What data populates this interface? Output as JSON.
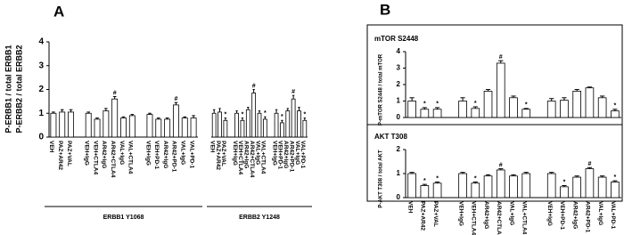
{
  "panel_labels": {
    "a": "A",
    "b": "B"
  },
  "chart_data": [
    {
      "type": "bar",
      "ylabel": [
        "P-ERBB1 / total ERBB1",
        "P-ERBB2 / total ERBB2"
      ],
      "xlabel": "ERBB1 Y1068",
      "categories": [
        "VEH",
        "PAZ+AR42",
        "PAZ+VAL",
        "VEH+IgG",
        "VEH+CTLA4",
        "AR42+IgG",
        "AR42+CTLA4",
        "VAL+IgG",
        "VAL+CTLA4",
        "VEH+IgG",
        "VEH+PD-1",
        "AR42+IgG",
        "AR42+PD-1",
        "VAL+IgG",
        "VAL+PD-1"
      ],
      "values": [
        1.0,
        1.05,
        1.05,
        1.0,
        0.75,
        1.1,
        1.6,
        0.8,
        0.9,
        0.95,
        0.75,
        0.75,
        1.35,
        0.8,
        0.8
      ],
      "errors": [
        0.05,
        0.1,
        0.1,
        0.05,
        0.05,
        0.1,
        0.1,
        0.05,
        0.05,
        0.05,
        0.05,
        0.05,
        0.1,
        0.05,
        0.1
      ],
      "annotations": [
        null,
        null,
        null,
        null,
        null,
        null,
        "#",
        null,
        null,
        null,
        null,
        null,
        "#",
        null,
        null
      ],
      "color": "#ffffff",
      "ylim": [
        0,
        4
      ],
      "yticks": [
        0,
        1,
        2,
        3,
        4
      ]
    },
    {
      "type": "bar",
      "xlabel": "ERBB2 Y1248",
      "categories": [
        "VEH",
        "PAZ+AR42",
        "PAZ+VAL",
        "VEH+IgG",
        "VEH+CTLA4",
        "AR42+IgG",
        "AR42+CTLA4",
        "VAL+IgG",
        "VAL+CTLA4",
        "VEH+IgG",
        "VEH+PD-1",
        "AR42+IgG",
        "AR42+PD-1",
        "VAL+IgG",
        "VAL+PD-1"
      ],
      "values": [
        1.0,
        1.05,
        0.7,
        1.0,
        0.7,
        1.15,
        1.85,
        1.0,
        0.75,
        1.0,
        0.6,
        1.1,
        1.6,
        1.1,
        0.7
      ],
      "errors": [
        0.15,
        0.15,
        0.1,
        0.1,
        0.1,
        0.1,
        0.15,
        0.1,
        0.1,
        0.15,
        0.1,
        0.1,
        0.15,
        0.15,
        0.1
      ],
      "annotations": [
        null,
        null,
        "*",
        null,
        "*",
        null,
        "#",
        null,
        "*",
        null,
        "*",
        null,
        "#",
        null,
        "*"
      ],
      "color": "#ffffff",
      "ylim": [
        0,
        4
      ]
    },
    {
      "type": "bar",
      "title": "mTOR S2448",
      "ylabel": "P-mTOR S2448 / total mTOR",
      "values": [
        1.0,
        0.5,
        0.5,
        1.0,
        0.55,
        1.6,
        3.3,
        1.2,
        0.5,
        1.0,
        1.05,
        1.6,
        1.8,
        1.2,
        0.4
      ],
      "errors": [
        0.2,
        0.1,
        0.1,
        0.2,
        0.1,
        0.1,
        0.15,
        0.1,
        0.05,
        0.15,
        0.15,
        0.1,
        0.05,
        0.1,
        0.1
      ],
      "annotations": [
        null,
        "*",
        "*",
        null,
        "*",
        null,
        "#",
        null,
        "*",
        null,
        null,
        null,
        null,
        null,
        "*"
      ],
      "color": "#ffffff",
      "ylim": [
        0,
        4
      ],
      "yticks": [
        0,
        1,
        2,
        3,
        4
      ]
    },
    {
      "type": "bar",
      "title": "AKT T308",
      "ylabel": "P-AKT T308 / total AKT",
      "categories": [
        "VEH",
        "PAZ+AR42",
        "PAZ+VAL",
        "VEH+IgG",
        "VEH+CTLA4",
        "AR42+IgG",
        "AR42+CTLA4",
        "VAL+IgG",
        "VAL+CTLA4",
        "VEH+IgG",
        "VEH+PD-1",
        "AR42+IgG",
        "AR42+PD-1",
        "VAL+IgG",
        "VAL+PD-1"
      ],
      "values": [
        1.0,
        0.5,
        0.6,
        1.0,
        0.6,
        0.9,
        1.15,
        0.9,
        1.0,
        1.0,
        0.45,
        0.85,
        1.2,
        0.85,
        0.65
      ],
      "errors": [
        0.05,
        0.05,
        0.05,
        0.05,
        0.05,
        0.05,
        0.05,
        0.05,
        0.05,
        0.05,
        0.05,
        0.05,
        0.05,
        0.05,
        0.05
      ],
      "annotations": [
        null,
        "*",
        "*",
        null,
        "*",
        null,
        "#",
        null,
        null,
        null,
        "*",
        null,
        "#",
        null,
        "*"
      ],
      "color": "#ffffff",
      "ylim": [
        0,
        2
      ],
      "yticks": [
        0,
        1,
        2
      ]
    }
  ]
}
